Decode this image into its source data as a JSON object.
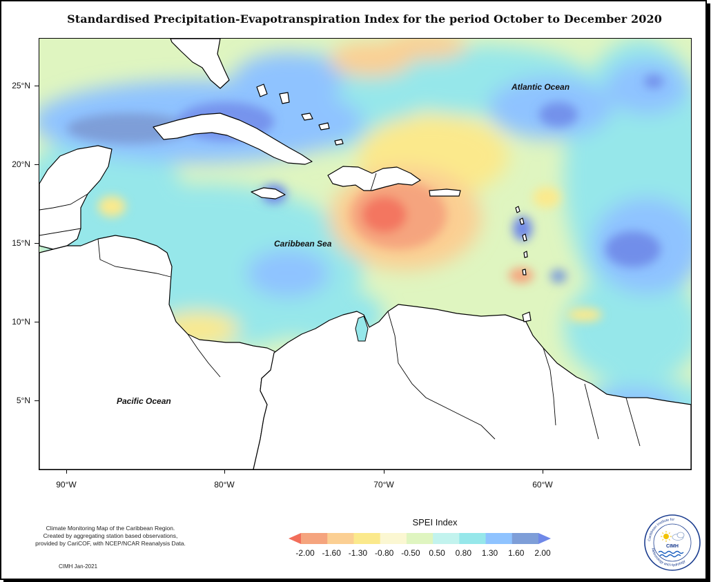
{
  "title": "Standardised Precipitation-Evapotranspiration Index for the period October to December 2020",
  "ocean_labels": {
    "atlantic": "Atlantic Ocean",
    "caribbean": "Caribbean Sea",
    "pacific": "Pacific Ocean"
  },
  "lat_ticks": [
    "25°N",
    "20°N",
    "15°N",
    "10°N",
    "5°N"
  ],
  "lon_ticks": [
    "90°W",
    "80°W",
    "70°W",
    "60°W"
  ],
  "caption": {
    "line1": "Climate Monitoring Map of the Caribbean Region.",
    "line2": "Created by aggregating station based observations,",
    "line3": "provided by CariCOF, with NCEP/NCAR Reanalysis Data.",
    "credit": "CIMH Jan-2021"
  },
  "legend": {
    "title": "SPEI Index",
    "values": [
      "-2.00",
      "-1.60",
      "-1.30",
      "-0.80",
      "-0.50",
      "0.50",
      "0.80",
      "1.30",
      "1.60",
      "2.00"
    ],
    "colors": [
      "#f26e5a",
      "#f5a47e",
      "#fbcf93",
      "#fbe98c",
      "#fbf7d2",
      "#dff5c0",
      "#c2f3ee",
      "#96e7ea",
      "#8fc3ff",
      "#7e9ed8",
      "#6f88e8"
    ]
  },
  "logo": {
    "name": "CIMH",
    "ring_text": "Caribbean Institute for Meteorology and Hydrology"
  }
}
